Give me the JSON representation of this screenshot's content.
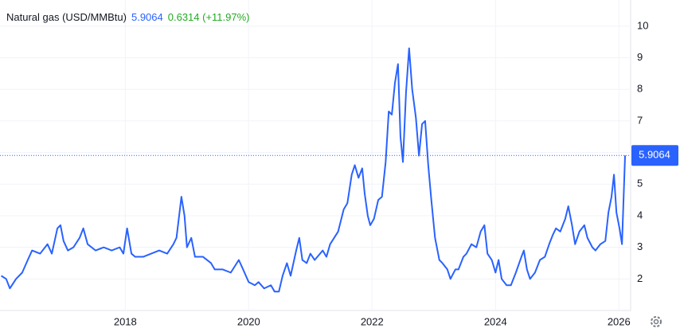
{
  "chart_data": {
    "type": "line",
    "title": "Natural gas (USD/MMBtu)",
    "last_price": 5.9064,
    "change_label": "0.6314 (+11.97%)",
    "x": [
      2015.99,
      2016.07,
      2016.13,
      2016.23,
      2016.33,
      2016.42,
      2016.49,
      2016.62,
      2016.74,
      2016.81,
      2016.9,
      2016.95,
      2017.0,
      2017.07,
      2017.16,
      2017.26,
      2017.32,
      2017.39,
      2017.52,
      2017.65,
      2017.78,
      2017.91,
      2017.97,
      2018.03,
      2018.1,
      2018.16,
      2018.29,
      2018.42,
      2018.55,
      2018.68,
      2018.78,
      2018.83,
      2018.91,
      2018.96,
      2019.0,
      2019.07,
      2019.13,
      2019.26,
      2019.39,
      2019.45,
      2019.58,
      2019.71,
      2019.84,
      2019.91,
      2020.0,
      2020.1,
      2020.16,
      2020.25,
      2020.36,
      2020.42,
      2020.49,
      2020.55,
      2020.62,
      2020.68,
      2020.77,
      2020.82,
      2020.87,
      2020.94,
      2021.0,
      2021.07,
      2021.2,
      2021.26,
      2021.32,
      2021.45,
      2021.54,
      2021.6,
      2021.67,
      2021.72,
      2021.78,
      2021.84,
      2021.88,
      2021.93,
      2021.97,
      2022.03,
      2022.1,
      2022.16,
      2022.22,
      2022.27,
      2022.32,
      2022.37,
      2022.42,
      2022.46,
      2022.5,
      2022.55,
      2022.6,
      2022.65,
      2022.71,
      2022.76,
      2022.81,
      2022.86,
      2022.91,
      2022.96,
      2023.02,
      2023.09,
      2023.14,
      2023.22,
      2023.27,
      2023.35,
      2023.4,
      2023.48,
      2023.53,
      2023.61,
      2023.69,
      2023.76,
      2023.82,
      2023.87,
      2023.94,
      2024.0,
      2024.05,
      2024.1,
      2024.18,
      2024.25,
      2024.33,
      2024.42,
      2024.46,
      2024.51,
      2024.56,
      2024.64,
      2024.72,
      2024.8,
      2024.87,
      2024.93,
      2024.98,
      2025.05,
      2025.13,
      2025.18,
      2025.24,
      2025.29,
      2025.36,
      2025.44,
      2025.49,
      2025.57,
      2025.62,
      2025.7,
      2025.78,
      2025.83,
      2025.88,
      2025.92,
      2025.96,
      2026.01,
      2026.05,
      2026.1
    ],
    "series": [
      {
        "color": "#2962ff",
        "values": [
          2.1,
          2.0,
          1.7,
          2.0,
          2.2,
          2.6,
          2.9,
          2.8,
          3.1,
          2.8,
          3.6,
          3.7,
          3.2,
          2.9,
          3.0,
          3.3,
          3.6,
          3.1,
          2.9,
          3.0,
          2.9,
          3.0,
          2.8,
          3.6,
          2.8,
          2.7,
          2.7,
          2.8,
          2.9,
          2.8,
          3.1,
          3.3,
          4.6,
          4.0,
          3.0,
          3.3,
          2.7,
          2.7,
          2.5,
          2.3,
          2.3,
          2.2,
          2.6,
          2.3,
          1.9,
          1.8,
          1.9,
          1.7,
          1.8,
          1.6,
          1.6,
          2.1,
          2.5,
          2.1,
          2.9,
          3.3,
          2.6,
          2.5,
          2.8,
          2.6,
          2.9,
          2.7,
          3.1,
          3.5,
          4.2,
          4.4,
          5.3,
          5.6,
          5.2,
          5.5,
          4.7,
          4.0,
          3.7,
          3.9,
          4.5,
          4.6,
          5.7,
          7.3,
          7.2,
          8.2,
          8.8,
          6.5,
          5.7,
          7.9,
          9.3,
          8.0,
          7.1,
          5.9,
          6.9,
          7.0,
          5.6,
          4.5,
          3.3,
          2.6,
          2.5,
          2.3,
          2.0,
          2.3,
          2.3,
          2.7,
          2.8,
          3.1,
          3.0,
          3.5,
          3.7,
          2.8,
          2.6,
          2.2,
          2.6,
          2.0,
          1.8,
          1.8,
          2.2,
          2.7,
          2.9,
          2.3,
          2.0,
          2.2,
          2.6,
          2.7,
          3.1,
          3.4,
          3.6,
          3.5,
          3.9,
          4.3,
          3.7,
          3.1,
          3.5,
          3.7,
          3.3,
          3.0,
          2.9,
          3.1,
          3.2,
          4.1,
          4.6,
          5.3,
          4.1,
          3.6,
          3.1,
          5.9064
        ]
      }
    ],
    "xlim": [
      2015.97,
      2026.19
    ],
    "ylim": [
      1,
      10.5
    ],
    "xticks": [
      2018,
      2020,
      2022,
      2024,
      2026
    ],
    "yticks": [
      2,
      3,
      4,
      5,
      6,
      7,
      8,
      9,
      10
    ],
    "grid": true
  }
}
